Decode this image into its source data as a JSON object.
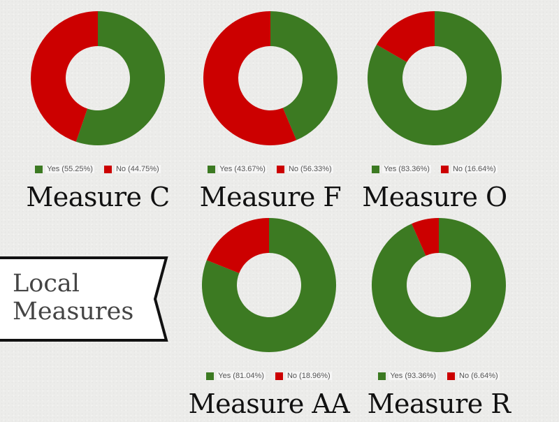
{
  "colors": {
    "yes": "#3c7a22",
    "no": "#cc0000"
  },
  "banner": {
    "line1": "Local",
    "line2": "Measures"
  },
  "chart_data": [
    {
      "type": "pie",
      "title": "Measure C",
      "donut": true,
      "slices": [
        {
          "label": "Yes",
          "value": 55.25,
          "legend": "Yes (55.25%)"
        },
        {
          "label": "No",
          "value": 44.75,
          "legend": "No (44.75%)"
        }
      ],
      "legend_position": "bottom"
    },
    {
      "type": "pie",
      "title": "Measure F",
      "donut": true,
      "slices": [
        {
          "label": "Yes",
          "value": 43.67,
          "legend": "Yes (43.67%)"
        },
        {
          "label": "No",
          "value": 56.33,
          "legend": "No (56.33%)"
        }
      ],
      "legend_position": "bottom"
    },
    {
      "type": "pie",
      "title": "Measure O",
      "donut": true,
      "slices": [
        {
          "label": "Yes",
          "value": 83.36,
          "legend": "Yes (83.36%)"
        },
        {
          "label": "No",
          "value": 16.64,
          "legend": "No (16.64%)"
        }
      ],
      "legend_position": "bottom"
    },
    {
      "type": "pie",
      "title": "Measure AA",
      "donut": true,
      "slices": [
        {
          "label": "Yes",
          "value": 81.04,
          "legend": "Yes (81.04%)"
        },
        {
          "label": "No",
          "value": 18.96,
          "legend": "No (18.96%)"
        }
      ],
      "legend_position": "bottom"
    },
    {
      "type": "pie",
      "title": "Measure R",
      "donut": true,
      "slices": [
        {
          "label": "Yes",
          "value": 93.36,
          "legend": "Yes (93.36%)"
        },
        {
          "label": "No",
          "value": 6.64,
          "legend": "No (6.64%)"
        }
      ],
      "legend_position": "bottom"
    }
  ]
}
